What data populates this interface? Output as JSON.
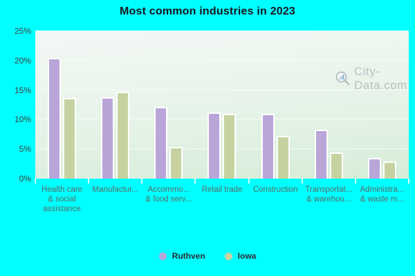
{
  "title": "Most common industries in 2023",
  "watermark": {
    "text": "City-Data.com",
    "icon": "magnifier-bar-chart-icon"
  },
  "colors": {
    "background": "#00ffff",
    "ruthven": "#b9a5d8",
    "iowa": "#c6d3a0",
    "plot_gradient_top": "#f3f8f5",
    "plot_gradient_bottom": "#d5edd8",
    "gridline": "rgba(255,255,255,0.65)",
    "title_text": "#16161e",
    "ytick_text": "#3f3f3f",
    "xtick_text": "#5a6b66",
    "legend_text": "#2b2b33",
    "watermark_text": "#aab4ba"
  },
  "chart_data": {
    "type": "bar",
    "title": "Most common industries in 2023",
    "categories": [
      "Health care & social assistance",
      "Manufacturing",
      "Accommodation & food services",
      "Retail trade",
      "Construction",
      "Transportation & warehousing",
      "Administrative & waste management"
    ],
    "category_display_lines": [
      [
        "Health care",
        "& social",
        "assistance"
      ],
      [
        "Manufactur..."
      ],
      [
        "Accommo...",
        "& food serv..."
      ],
      [
        "Retail trade"
      ],
      [
        "Construction"
      ],
      [
        "Transportat...",
        "& warehou..."
      ],
      [
        "Administra...",
        "& waste m..."
      ]
    ],
    "series": [
      {
        "name": "Ruthven",
        "color": "#b9a5d8",
        "values": [
          20.4,
          13.8,
          12.1,
          11.2,
          11.0,
          8.3,
          3.5
        ]
      },
      {
        "name": "Iowa",
        "color": "#c6d3a0",
        "values": [
          13.7,
          14.7,
          5.4,
          11.0,
          7.2,
          4.4,
          2.9
        ]
      }
    ],
    "xlabel": "",
    "ylabel": "",
    "ylim": [
      0,
      25
    ],
    "yticks": [
      "0%",
      "5%",
      "10%",
      "15%",
      "20%",
      "25%"
    ],
    "grid": "horizontal",
    "legend_position": "bottom"
  },
  "legend": {
    "items": [
      {
        "label": "Ruthven",
        "color": "#b9a5d8"
      },
      {
        "label": "Iowa",
        "color": "#c6d3a0"
      }
    ]
  }
}
